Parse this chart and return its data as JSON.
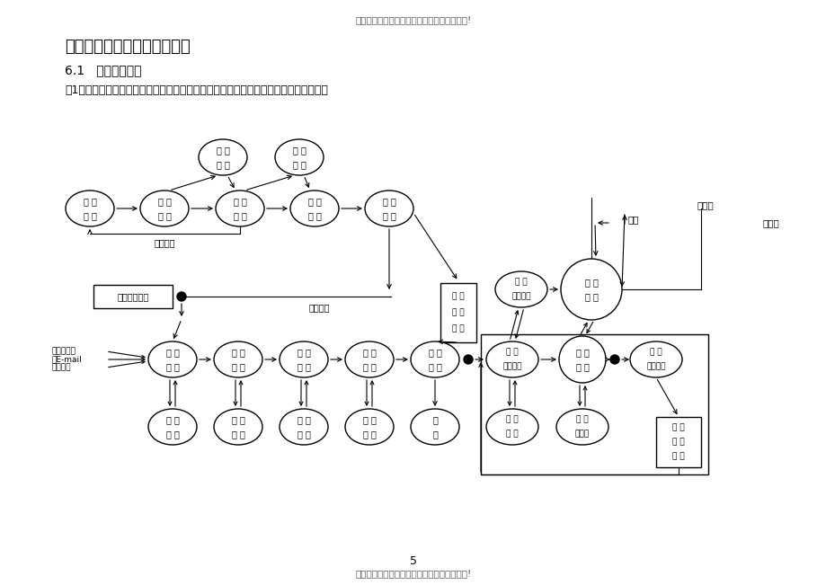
{
  "title_top": "欢迎阅读本文档，希望本文档能对您有所帮助!",
  "title_main": "电子公文文档一体化业务流程",
  "section": "6.1   业务流程简图",
  "desc": "图1中的业务流程描述了电子公文从形成、办理、归档、保管、利用或销毁的一般过程。",
  "title_bottom": "欢迎阅读本文档，希望本文档能对您有所帮助!",
  "page_num": "5",
  "bg_color": "#ffffff"
}
